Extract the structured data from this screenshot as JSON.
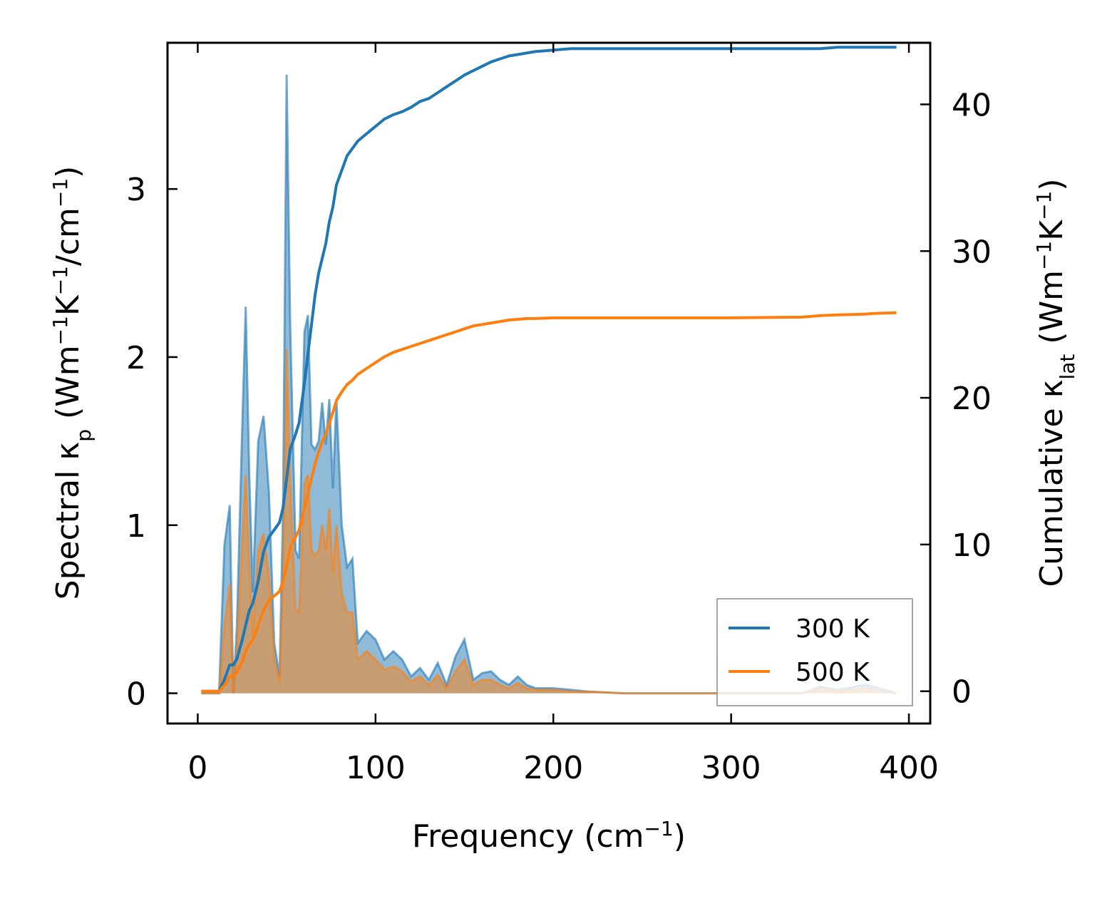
{
  "chart_data": {
    "type": "line",
    "title": "",
    "xlabel": "Frequency (cm",
    "xlabel_sup": "−1",
    "xlabel_end": ")",
    "ylabel_left": {
      "p1": "Spectral κ",
      "sub1": "p",
      "p2": " (Wm",
      "sup1": "−1",
      "p3": "K",
      "sup2": "−1",
      "p4": "/cm",
      "sup3": "−1",
      "p5": ")"
    },
    "ylabel_right": {
      "p1": "Cumulative κ",
      "sub1": "lat",
      "p2": " (Wm",
      "sup1": "−1",
      "p3": "K",
      "sup2": "−1",
      "p4": ")"
    },
    "xlim": [
      -17,
      412
    ],
    "ylim_left": [
      -0.18,
      3.87
    ],
    "ylim_right": [
      -2.2,
      44.2
    ],
    "xticks": [
      "0",
      "100",
      "200",
      "300",
      "400"
    ],
    "xtick_values": [
      0,
      100,
      200,
      300,
      400
    ],
    "yticks_left": [
      "0",
      "1",
      "2",
      "3"
    ],
    "ytick_left_values": [
      0,
      1,
      2,
      3
    ],
    "yticks_right": [
      "0",
      "10",
      "20",
      "30",
      "40"
    ],
    "ytick_right_values": [
      0,
      10,
      20,
      30,
      40
    ],
    "grid": false,
    "legend_position": "lower-right",
    "colors": {
      "s300": "#1f77b4",
      "s500": "#ff7f0e"
    },
    "spectral": [
      {
        "name": "300 K",
        "x": [
          2,
          12,
          15,
          18,
          20,
          22,
          25,
          27,
          29,
          31,
          34,
          37,
          40,
          43,
          46,
          48,
          50,
          52,
          55,
          57,
          60,
          62,
          64,
          66,
          68,
          70,
          72,
          74,
          76,
          78,
          81,
          84,
          87,
          90,
          95,
          100,
          105,
          110,
          115,
          120,
          125,
          130,
          135,
          140,
          145,
          150,
          155,
          160,
          165,
          170,
          175,
          180,
          185,
          190,
          200,
          210,
          220,
          240,
          260,
          300,
          340,
          350,
          360,
          375,
          380,
          393
        ],
        "y": [
          0,
          0,
          0.88,
          1.12,
          0,
          0.4,
          1.58,
          2.3,
          1.3,
          0.6,
          1.5,
          1.65,
          1.2,
          0.3,
          0.1,
          1.1,
          3.68,
          2.2,
          0.85,
          0.8,
          2.15,
          2.25,
          1.48,
          1.45,
          1.5,
          1.73,
          1.48,
          1.75,
          1.22,
          1.75,
          1.0,
          0.75,
          0.8,
          0.3,
          0.37,
          0.32,
          0.2,
          0.25,
          0.2,
          0.1,
          0.15,
          0.08,
          0.18,
          0.05,
          0.22,
          0.32,
          0.08,
          0.12,
          0.13,
          0.08,
          0.05,
          0.1,
          0.05,
          0.03,
          0.03,
          0.02,
          0.01,
          0,
          0,
          0,
          0,
          0.04,
          0.02,
          0.05,
          0.04,
          0
        ],
        "cumulative": [
          0,
          0,
          0.8,
          1.8,
          1.8,
          2.2,
          3.5,
          4.5,
          5.5,
          6,
          7.5,
          9.5,
          10.5,
          11,
          11.5,
          12.5,
          14.5,
          16.5,
          17.5,
          18.3,
          21,
          23,
          25,
          27,
          28.5,
          29.5,
          30.5,
          32,
          33,
          34.5,
          35.5,
          36.5,
          37,
          37.5,
          38,
          38.5,
          39,
          39.3,
          39.5,
          39.8,
          40.2,
          40.4,
          40.8,
          41.2,
          41.6,
          42.0,
          42.3,
          42.6,
          42.9,
          43.1,
          43.3,
          43.4,
          43.5,
          43.6,
          43.7,
          43.8,
          43.8,
          43.8,
          43.8,
          43.8,
          43.8,
          43.8,
          43.9,
          43.9,
          43.9,
          43.9
        ]
      },
      {
        "name": "500 K",
        "x": [
          2,
          12,
          15,
          18,
          20,
          22,
          25,
          27,
          29,
          31,
          34,
          37,
          40,
          43,
          46,
          48,
          50,
          52,
          55,
          57,
          60,
          62,
          64,
          66,
          68,
          70,
          72,
          74,
          76,
          78,
          81,
          84,
          87,
          90,
          95,
          100,
          105,
          110,
          115,
          120,
          125,
          130,
          135,
          140,
          145,
          150,
          155,
          160,
          165,
          170,
          175,
          180,
          185,
          190,
          200,
          210,
          220,
          240,
          260,
          300,
          340,
          350,
          360,
          375,
          380,
          393
        ],
        "y": [
          0,
          0,
          0.4,
          0.65,
          0,
          0.25,
          0.9,
          1.3,
          0.75,
          0.35,
          0.85,
          0.95,
          0.7,
          0.2,
          0.06,
          0.65,
          2.05,
          1.25,
          0.5,
          0.48,
          1.25,
          1.3,
          0.85,
          0.82,
          0.85,
          1.0,
          0.85,
          1.1,
          0.72,
          1.0,
          0.6,
          0.48,
          0.48,
          0.2,
          0.25,
          0.2,
          0.14,
          0.16,
          0.13,
          0.07,
          0.1,
          0.05,
          0.11,
          0.03,
          0.13,
          0.2,
          0.05,
          0.08,
          0.08,
          0.05,
          0.03,
          0.06,
          0.03,
          0.02,
          0.02,
          0.01,
          0.01,
          0,
          0,
          0,
          0,
          0.03,
          0.01,
          0.03,
          0.02,
          0
        ],
        "cumulative": [
          0,
          0,
          0.4,
          1.0,
          1.0,
          1.3,
          2.0,
          2.7,
          3.2,
          3.5,
          4.5,
          5.5,
          6.2,
          6.5,
          6.8,
          7.5,
          8.5,
          9.8,
          10.5,
          11,
          12.5,
          13.5,
          14.5,
          15.5,
          16.3,
          17,
          17.5,
          18.3,
          19,
          19.8,
          20.4,
          20.9,
          21.2,
          21.6,
          22,
          22.4,
          22.8,
          23.1,
          23.3,
          23.5,
          23.7,
          23.9,
          24.1,
          24.3,
          24.5,
          24.7,
          24.9,
          25.0,
          25.1,
          25.2,
          25.3,
          25.35,
          25.4,
          25.4,
          25.45,
          25.45,
          25.45,
          25.45,
          25.45,
          25.45,
          25.5,
          25.6,
          25.65,
          25.7,
          25.75,
          25.8
        ]
      }
    ],
    "legend": [
      {
        "label": "300 K",
        "color": "#1f77b4"
      },
      {
        "label": "500 K",
        "color": "#ff7f0e"
      }
    ]
  }
}
